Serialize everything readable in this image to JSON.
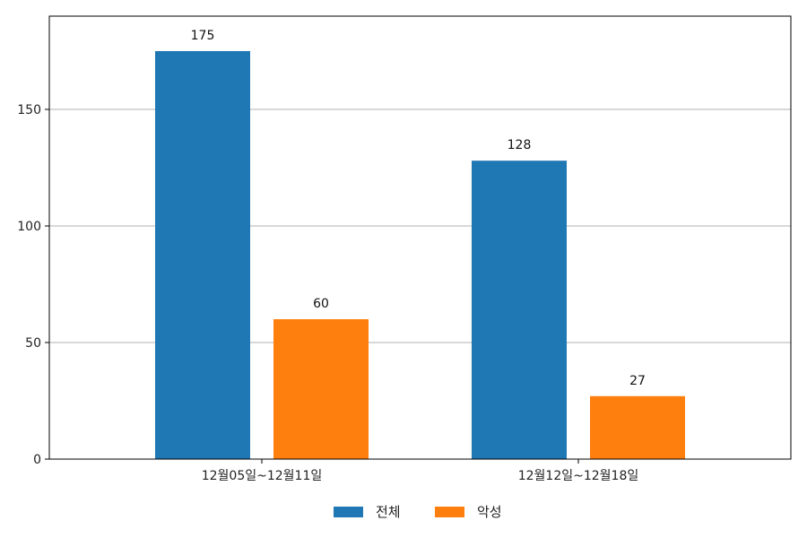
{
  "chart_data": {
    "type": "bar",
    "categories": [
      "12월05일~12월11일",
      "12월12일~12월18일"
    ],
    "series": [
      {
        "name": "전체",
        "values": [
          175,
          128
        ],
        "color": "#1f77b4"
      },
      {
        "name": "악성",
        "values": [
          60,
          27
        ],
        "color": "#ff7f0e"
      }
    ],
    "ylim": [
      0,
      190
    ],
    "yticks": [
      0,
      50,
      100,
      150
    ],
    "ytick_labels": [
      "0",
      "50",
      "100",
      "150"
    ],
    "grid": "horizontal",
    "legend_position": "bottom-center",
    "data_labels": true
  }
}
